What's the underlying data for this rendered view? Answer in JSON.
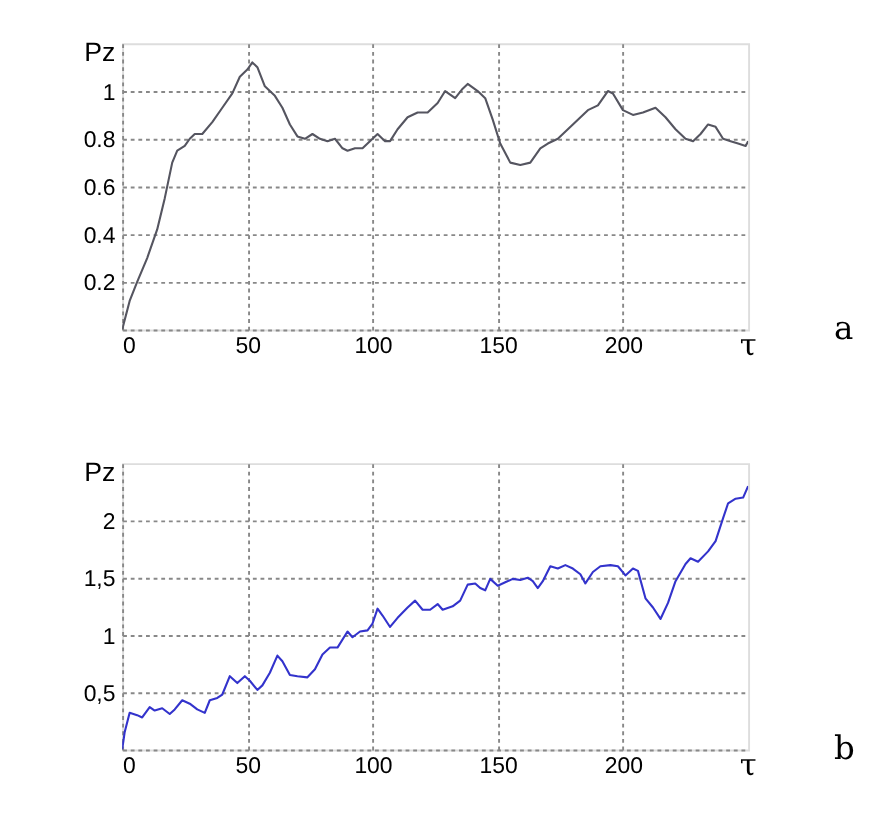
{
  "chart_data": [
    {
      "type": "line",
      "ylabel": "Pz",
      "xlabel": "τ",
      "annotations": [
        "a"
      ],
      "xlim": [
        0,
        250
      ],
      "xticks": [
        0,
        50,
        100,
        150,
        200
      ],
      "ylim": [
        0,
        1.2
      ],
      "yticks": [
        {
          "value": 0,
          "label": null
        },
        0.2,
        0.4,
        0.6,
        0.8,
        1
      ],
      "grid": true,
      "line_style": "solid",
      "series": [
        {
          "color": "#555560",
          "x": [
            0,
            3,
            6,
            10,
            14,
            17,
            20,
            22,
            25,
            27,
            29,
            32,
            36,
            40,
            44,
            47,
            50,
            52,
            54,
            57,
            61,
            64,
            67,
            70,
            73,
            76,
            79,
            82,
            85,
            88,
            90,
            93,
            96,
            100,
            102,
            105,
            107,
            110,
            114,
            118,
            122,
            126,
            129,
            133,
            136,
            138,
            142,
            145,
            148,
            151,
            155,
            159,
            163,
            167,
            170,
            174,
            178,
            182,
            186,
            190,
            194,
            196,
            200,
            204,
            208,
            213,
            217,
            221,
            225,
            228,
            231,
            234,
            237,
            240,
            243,
            246,
            249,
            250
          ],
          "values": [
            0,
            0.12,
            0.2,
            0.3,
            0.42,
            0.55,
            0.7,
            0.75,
            0.77,
            0.8,
            0.82,
            0.82,
            0.87,
            0.93,
            0.99,
            1.06,
            1.09,
            1.12,
            1.1,
            1.02,
            0.98,
            0.93,
            0.86,
            0.81,
            0.8,
            0.82,
            0.8,
            0.79,
            0.8,
            0.76,
            0.75,
            0.76,
            0.76,
            0.8,
            0.82,
            0.79,
            0.79,
            0.84,
            0.89,
            0.91,
            0.91,
            0.95,
            1.0,
            0.97,
            1.01,
            1.03,
            1.0,
            0.97,
            0.88,
            0.78,
            0.7,
            0.69,
            0.7,
            0.76,
            0.78,
            0.8,
            0.84,
            0.88,
            0.92,
            0.94,
            1.0,
            0.99,
            0.92,
            0.9,
            0.91,
            0.93,
            0.89,
            0.84,
            0.8,
            0.79,
            0.82,
            0.86,
            0.85,
            0.8,
            0.79,
            0.78,
            0.77,
            0.79
          ]
        }
      ]
    },
    {
      "type": "line",
      "ylabel": "Pz",
      "xlabel": "τ",
      "annotations": [
        "b"
      ],
      "xlim": [
        0,
        250
      ],
      "xticks": [
        0,
        50,
        100,
        150,
        200
      ],
      "ylim": [
        0,
        2.5
      ],
      "yticks": [
        {
          "value": 0,
          "label": null
        },
        {
          "value": 0.5,
          "label": "0,5"
        },
        1,
        {
          "value": 1.5,
          "label": "1,5"
        },
        2
      ],
      "grid": true,
      "line_style": "solid",
      "series": [
        {
          "color": "#3333cc",
          "x": [
            0,
            1,
            3,
            6,
            8,
            11,
            13,
            16,
            19,
            21,
            24,
            27,
            30,
            33,
            35,
            38,
            40,
            43,
            46,
            49,
            51,
            54,
            56,
            59,
            62,
            64,
            67,
            70,
            74,
            77,
            80,
            83,
            86,
            90,
            92,
            95,
            98,
            100,
            102,
            104,
            107,
            110,
            114,
            117,
            120,
            123,
            126,
            128,
            132,
            135,
            138,
            141,
            143,
            145,
            147,
            150,
            153,
            156,
            159,
            162,
            164,
            166,
            168,
            171,
            174,
            177,
            180,
            183,
            185,
            188,
            191,
            195,
            198,
            201,
            204,
            206,
            209,
            212,
            215,
            218,
            221,
            225,
            227,
            230,
            234,
            237,
            240,
            242,
            245,
            248,
            250
          ],
          "values": [
            0,
            0.15,
            0.32,
            0.3,
            0.28,
            0.37,
            0.34,
            0.36,
            0.31,
            0.35,
            0.43,
            0.4,
            0.35,
            0.32,
            0.43,
            0.45,
            0.48,
            0.64,
            0.58,
            0.64,
            0.6,
            0.52,
            0.56,
            0.67,
            0.82,
            0.77,
            0.65,
            0.64,
            0.63,
            0.7,
            0.83,
            0.89,
            0.89,
            1.03,
            0.98,
            1.03,
            1.04,
            1.1,
            1.23,
            1.17,
            1.07,
            1.15,
            1.24,
            1.3,
            1.22,
            1.22,
            1.27,
            1.22,
            1.25,
            1.3,
            1.44,
            1.45,
            1.41,
            1.39,
            1.49,
            1.43,
            1.46,
            1.49,
            1.48,
            1.5,
            1.47,
            1.41,
            1.47,
            1.6,
            1.58,
            1.61,
            1.58,
            1.53,
            1.45,
            1.55,
            1.6,
            1.61,
            1.6,
            1.52,
            1.58,
            1.56,
            1.32,
            1.24,
            1.14,
            1.28,
            1.47,
            1.62,
            1.67,
            1.64,
            1.73,
            1.82,
            2.02,
            2.15,
            2.19,
            2.2,
            2.3
          ]
        }
      ]
    }
  ]
}
